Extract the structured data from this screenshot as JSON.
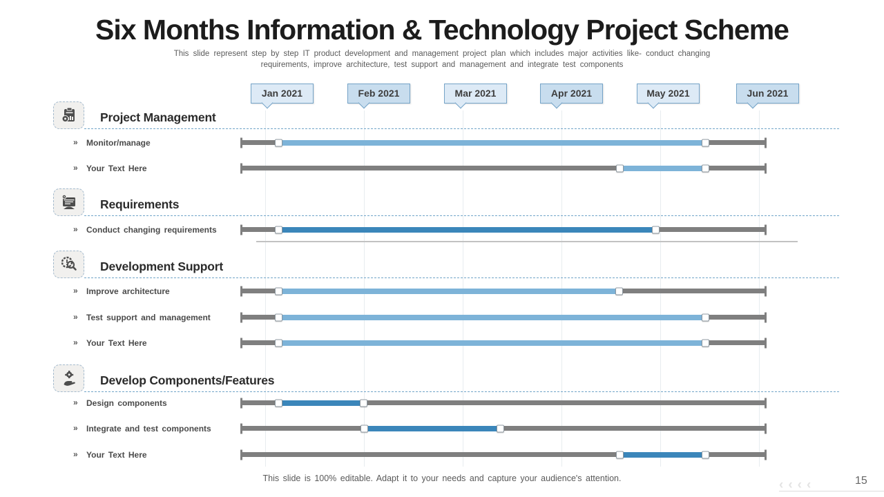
{
  "slide": {
    "title": "Six Months Information & Technology Project Scheme",
    "subtitle_lines": [
      "This slide represent step by step IT product development and management project plan which includes major activities like- conduct changing",
      "requirements, improve architecture, test support and management and integrate test components"
    ],
    "footer": "This slide is 100% editable. Adapt it to your needs and capture your audience's attention.",
    "page_number": "15",
    "bullet_char": "»",
    "watermark_chevrons": "‹‹‹‹"
  },
  "colors": {
    "light": "#7db3d8",
    "dark": "#3b86ba",
    "track": "#7f7f7f",
    "callout_border": "#74a3c7",
    "callout_fill_a": "#ddeaf6",
    "callout_fill_b": "#c8ddee"
  },
  "chart_data": {
    "type": "gantt",
    "title": "Six Months Information & Technology Project Scheme",
    "x_axis": {
      "unit": "month",
      "labels": [
        "Jan 2021",
        "Feb 2021",
        "Mar 2021",
        "Apr 2021",
        "May 2021",
        "Jun 2021"
      ],
      "range_months": [
        0,
        6
      ],
      "grid": "faint vertical column lines"
    },
    "legend": "none",
    "sections": [
      {
        "title": "Project Management",
        "icon": "clipboard-chart-gear-icon",
        "tasks": [
          {
            "label": "Monitor/manage",
            "start_month": 0.4,
            "end_month": 5.3,
            "start_pct": 7.1,
            "end_pct": 88.7,
            "shade": "light"
          },
          {
            "label": "Your Text Here",
            "start_month": 4.3,
            "end_month": 5.3,
            "start_pct": 72.2,
            "end_pct": 88.7,
            "shade": "light"
          }
        ]
      },
      {
        "title": "Requirements",
        "icon": "system-window-gear-icon",
        "tasks": [
          {
            "label": "Conduct changing requirements",
            "start_month": 0.4,
            "end_month": 4.75,
            "start_pct": 7.1,
            "end_pct": 79.2,
            "shade": "dark"
          }
        ]
      },
      {
        "title": "Development Support",
        "icon": "badge-magnifier-icon",
        "tasks": [
          {
            "label": "Improve architecture",
            "start_month": 0.4,
            "end_month": 4.3,
            "start_pct": 7.1,
            "end_pct": 72.2,
            "shade": "light"
          },
          {
            "label": "Test support and management",
            "start_month": 0.4,
            "end_month": 5.3,
            "start_pct": 7.1,
            "end_pct": 88.7,
            "shade": "light"
          },
          {
            "label": "Your Text Here",
            "start_month": 0.4,
            "end_month": 5.3,
            "start_pct": 7.1,
            "end_pct": 88.7,
            "shade": "light"
          }
        ]
      },
      {
        "title": "Develop Components/Features",
        "icon": "hand-gear-icon",
        "tasks": [
          {
            "label": "Design components",
            "start_month": 0.4,
            "end_month": 1.4,
            "start_pct": 7.1,
            "end_pct": 23.5,
            "shade": "dark"
          },
          {
            "label": "Integrate and test components",
            "start_month": 1.4,
            "end_month": 3.0,
            "start_pct": 23.5,
            "end_pct": 49.5,
            "shade": "dark"
          },
          {
            "label": "Your Text Here",
            "start_month": 4.3,
            "end_month": 5.3,
            "start_pct": 72.2,
            "end_pct": 88.7,
            "shade": "dark"
          }
        ]
      }
    ]
  }
}
